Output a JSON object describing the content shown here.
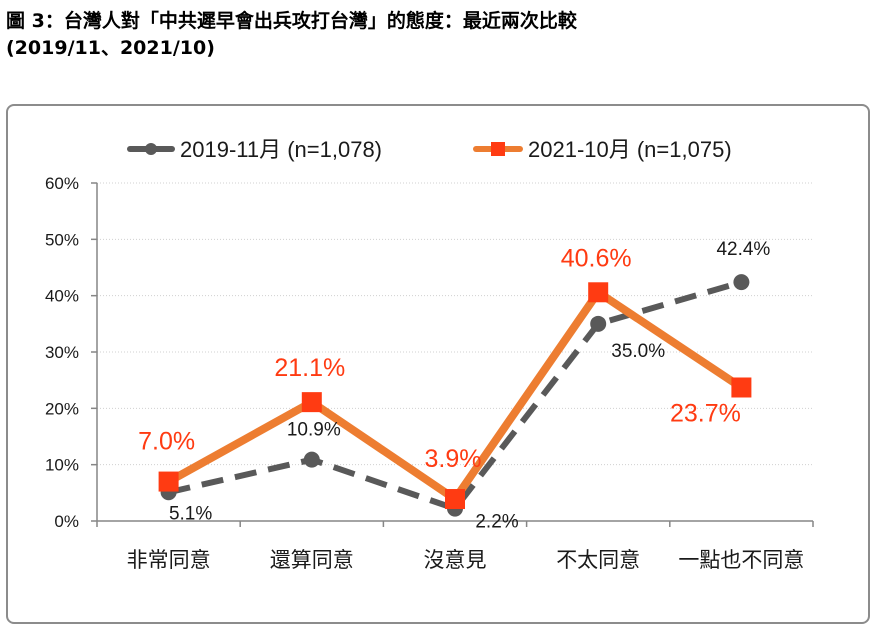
{
  "header": {
    "title": "圖 3：台灣人對「中共遲早會出兵攻打台灣」的態度：最近兩次比較",
    "subtitle": "(2019/11、2021/10)"
  },
  "chart_data": {
    "type": "line",
    "categories": [
      "非常同意",
      "還算同意",
      "沒意見",
      "不太同意",
      "一點也不同意"
    ],
    "ylim": [
      0,
      60
    ],
    "yticks": [
      "0%",
      "10%",
      "20%",
      "30%",
      "40%",
      "50%",
      "60%"
    ],
    "grid": true,
    "legend_position": "top",
    "series": [
      {
        "name": "2019-11月  (n=1,078)",
        "values": [
          5.1,
          10.9,
          2.2,
          35.0,
          42.4
        ],
        "labels": [
          "5.1%",
          "10.9%",
          "2.2%",
          "35.0%",
          "42.4%"
        ],
        "color": "#595959",
        "style": "dashed",
        "marker": "circle"
      },
      {
        "name": "2021-10月  (n=1,075)",
        "values": [
          7.0,
          21.1,
          3.9,
          40.6,
          23.7
        ],
        "labels": [
          "7.0%",
          "21.1%",
          "3.9%",
          "40.6%",
          "23.7%"
        ],
        "color": "#ed7d31",
        "label_color": "#ff3b12",
        "style": "solid",
        "marker": "square"
      }
    ]
  }
}
